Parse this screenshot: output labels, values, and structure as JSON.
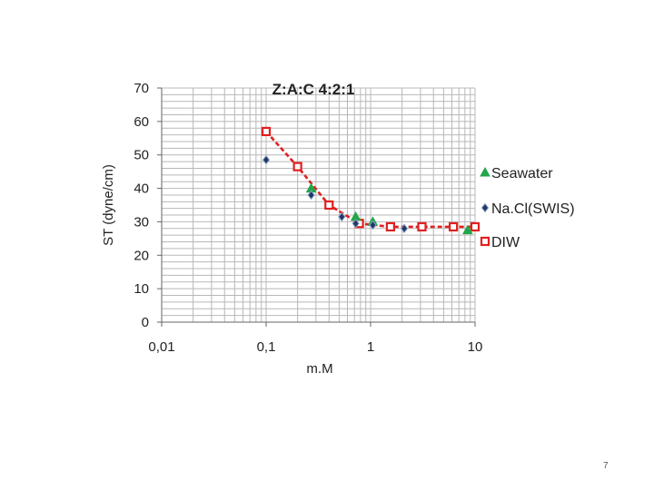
{
  "page_number": "7",
  "chart_data": {
    "type": "scatter",
    "title": "Z:A:C 4:2:1",
    "xlabel": "m.M",
    "ylabel": "ST (dyne/cm)",
    "x_scale": "log",
    "xlim": [
      0.01,
      10
    ],
    "ylim": [
      0,
      70
    ],
    "x_ticks": [
      "0,01",
      "0,1",
      "1",
      "10"
    ],
    "y_ticks": [
      "0",
      "10",
      "20",
      "30",
      "40",
      "50",
      "60",
      "70"
    ],
    "grid": true,
    "legend_position": "right",
    "series": [
      {
        "name": "Seawater",
        "marker": "triangle",
        "color": "#22a64a",
        "line": false,
        "x": [
          0.27,
          0.72,
          1.05,
          8.5
        ],
        "y": [
          40,
          31.5,
          30,
          27.5
        ]
      },
      {
        "name": "Na.Cl(SWIS)",
        "marker": "diamond",
        "color": "#1f3864",
        "line": false,
        "x": [
          0.1,
          0.27,
          0.53,
          0.72,
          1.05,
          2.1
        ],
        "y": [
          48.5,
          38,
          31.5,
          29.5,
          29,
          28
        ]
      },
      {
        "name": "DIW",
        "marker": "square",
        "color": "#e02020",
        "line": true,
        "x": [
          0.1,
          0.2,
          0.4,
          0.78,
          1.55,
          3.1,
          6.2,
          10
        ],
        "y": [
          57,
          46.5,
          35,
          29.5,
          28.5,
          28.5,
          28.5,
          28.5
        ]
      }
    ]
  }
}
